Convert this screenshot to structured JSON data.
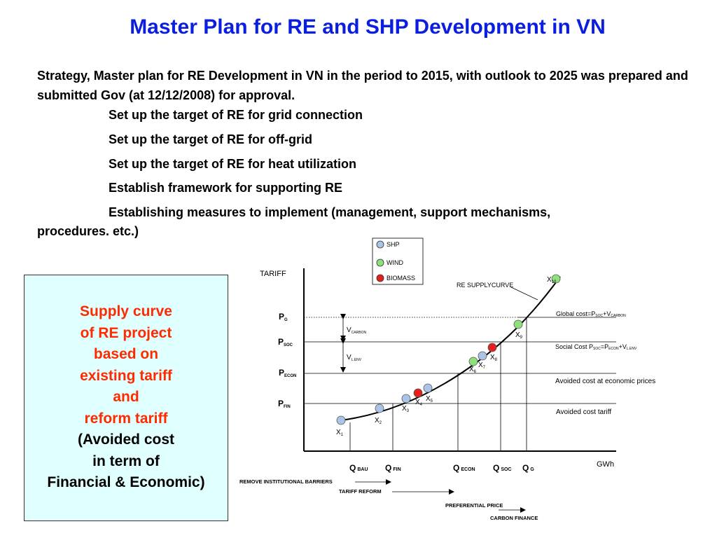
{
  "title": "Master Plan for RE and SHP Development in VN",
  "intro": "Strategy, Master plan for RE Development in VN in the period to 2015, with outlook to 2025 was prepared and submitted Gov (at 12/12/2008) for approval.",
  "bullets": [
    "Set up the target of RE for grid connection",
    "Set up the target of RE for off-grid",
    "Set up the target of RE for heat utilization",
    "Establish framework for supporting RE",
    "Establishing measures to implement (management, support mechanisms,"
  ],
  "bullet_continuation": "procedures. etc.)",
  "sidebox": {
    "red_lines": [
      "Supply curve",
      "of RE project",
      "based on",
      "existing tariff",
      "and",
      "reform tariff"
    ],
    "black_lines": [
      "(Avoided cost",
      "in term of",
      "Financial & Economic)"
    ]
  },
  "legend": [
    {
      "label": "SHP",
      "color": "#a9c4e6"
    },
    {
      "label": "WIND",
      "color": "#8fe07a"
    },
    {
      "label": "BIOMASS",
      "color": "#e3201b"
    }
  ],
  "axis": {
    "y": "TARIFF",
    "x": "GWh"
  },
  "curve_label": "RE SUPPLYCURVE",
  "price_levels": {
    "pg": {
      "main": "P",
      "sub": "G"
    },
    "psoc": {
      "main": "P",
      "sub": "SOC"
    },
    "pecon": {
      "main": "P",
      "sub": "ECON"
    },
    "pfin": {
      "main": "P",
      "sub": "FIN"
    }
  },
  "gaps": {
    "carbon": {
      "main": "V",
      "sub": "CARBON"
    },
    "env": {
      "main": "V",
      "sub": "L.ENV"
    }
  },
  "right_labels": {
    "global": "Global cost=Pₛₒc+V",
    "social": "Social Cost",
    "avoided_econ": "Avoided cost at economic prices",
    "avoided_tariff": "Avoided cost tariff"
  },
  "quantities": [
    {
      "main": "Q",
      "sub": "BAU"
    },
    {
      "main": "Q",
      "sub": "FIN"
    },
    {
      "main": "Q",
      "sub": "ECON"
    },
    {
      "main": "Q",
      "sub": "SOC"
    },
    {
      "main": "Q",
      "sub": "G"
    }
  ],
  "points": [
    {
      "label": "X",
      "sub": "1",
      "type": "SHP"
    },
    {
      "label": "X",
      "sub": "2",
      "type": "SHP"
    },
    {
      "label": "X",
      "sub": "3",
      "type": "SHP"
    },
    {
      "label": "X",
      "sub": "4",
      "type": "BIOMASS"
    },
    {
      "label": "X",
      "sub": "5",
      "type": "SHP"
    },
    {
      "label": "X",
      "sub": "6",
      "type": "WIND"
    },
    {
      "label": "X",
      "sub": "7",
      "type": "SHP"
    },
    {
      "label": "X",
      "sub": "8",
      "type": "BIOMASS"
    },
    {
      "label": "X",
      "sub": "9",
      "type": "WIND"
    },
    {
      "label": "X",
      "sub": "10",
      "type": "WIND"
    }
  ],
  "measures": [
    "REMOVE INSTITUTIONAL BARRIERS",
    "TARIFF REFORM",
    "PREFERENTIAL PRICE",
    "CARBON FINANCE"
  ]
}
